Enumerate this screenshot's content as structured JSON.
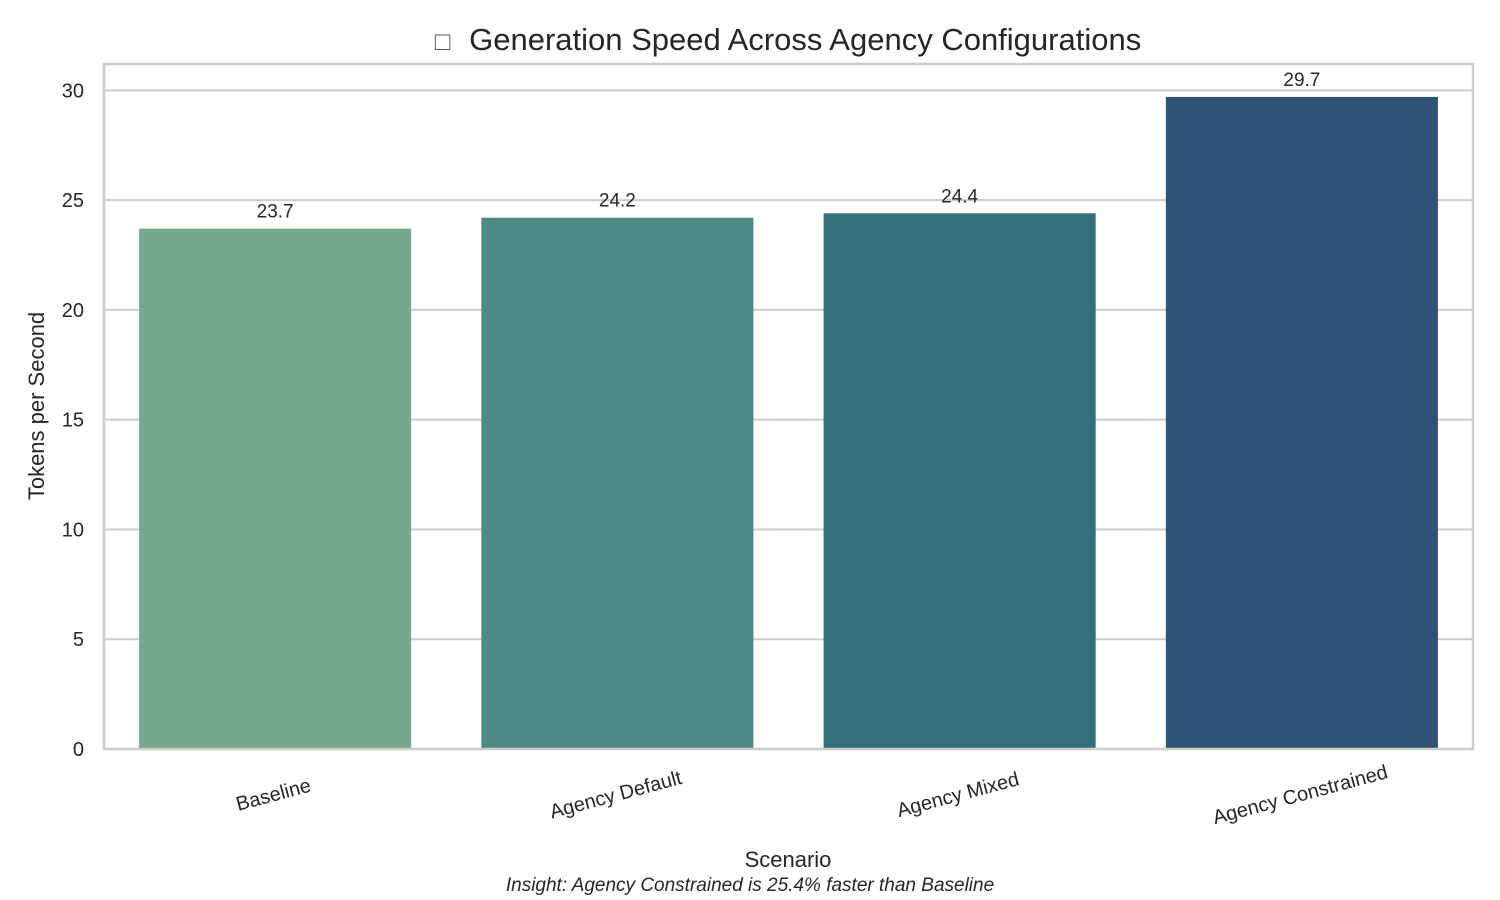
{
  "chart_data": {
    "type": "bar",
    "title": "Generation Speed Across Agency Configurations",
    "title_icon": "emoji-glyph",
    "xlabel": "Scenario",
    "ylabel": "Tokens per Second",
    "categories": [
      "Baseline",
      "Agency Default",
      "Agency Mixed",
      "Agency Constrained"
    ],
    "values": [
      23.7,
      24.2,
      24.4,
      29.7
    ],
    "value_labels": [
      "23.7",
      "24.2",
      "24.4",
      "29.7"
    ],
    "colors": [
      "#75a98e",
      "#4e8a84",
      "#356f7d",
      "#2e5377"
    ],
    "ylim": [
      0,
      31.2
    ],
    "yticks": [
      0,
      5,
      10,
      15,
      20,
      25,
      30
    ],
    "ytick_labels": [
      "0",
      "5",
      "10",
      "15",
      "20",
      "25",
      "30"
    ],
    "grid": "horizontal",
    "legend": "none",
    "annotation": "Insight: Agency Constrained is 25.4% faster than Baseline"
  }
}
